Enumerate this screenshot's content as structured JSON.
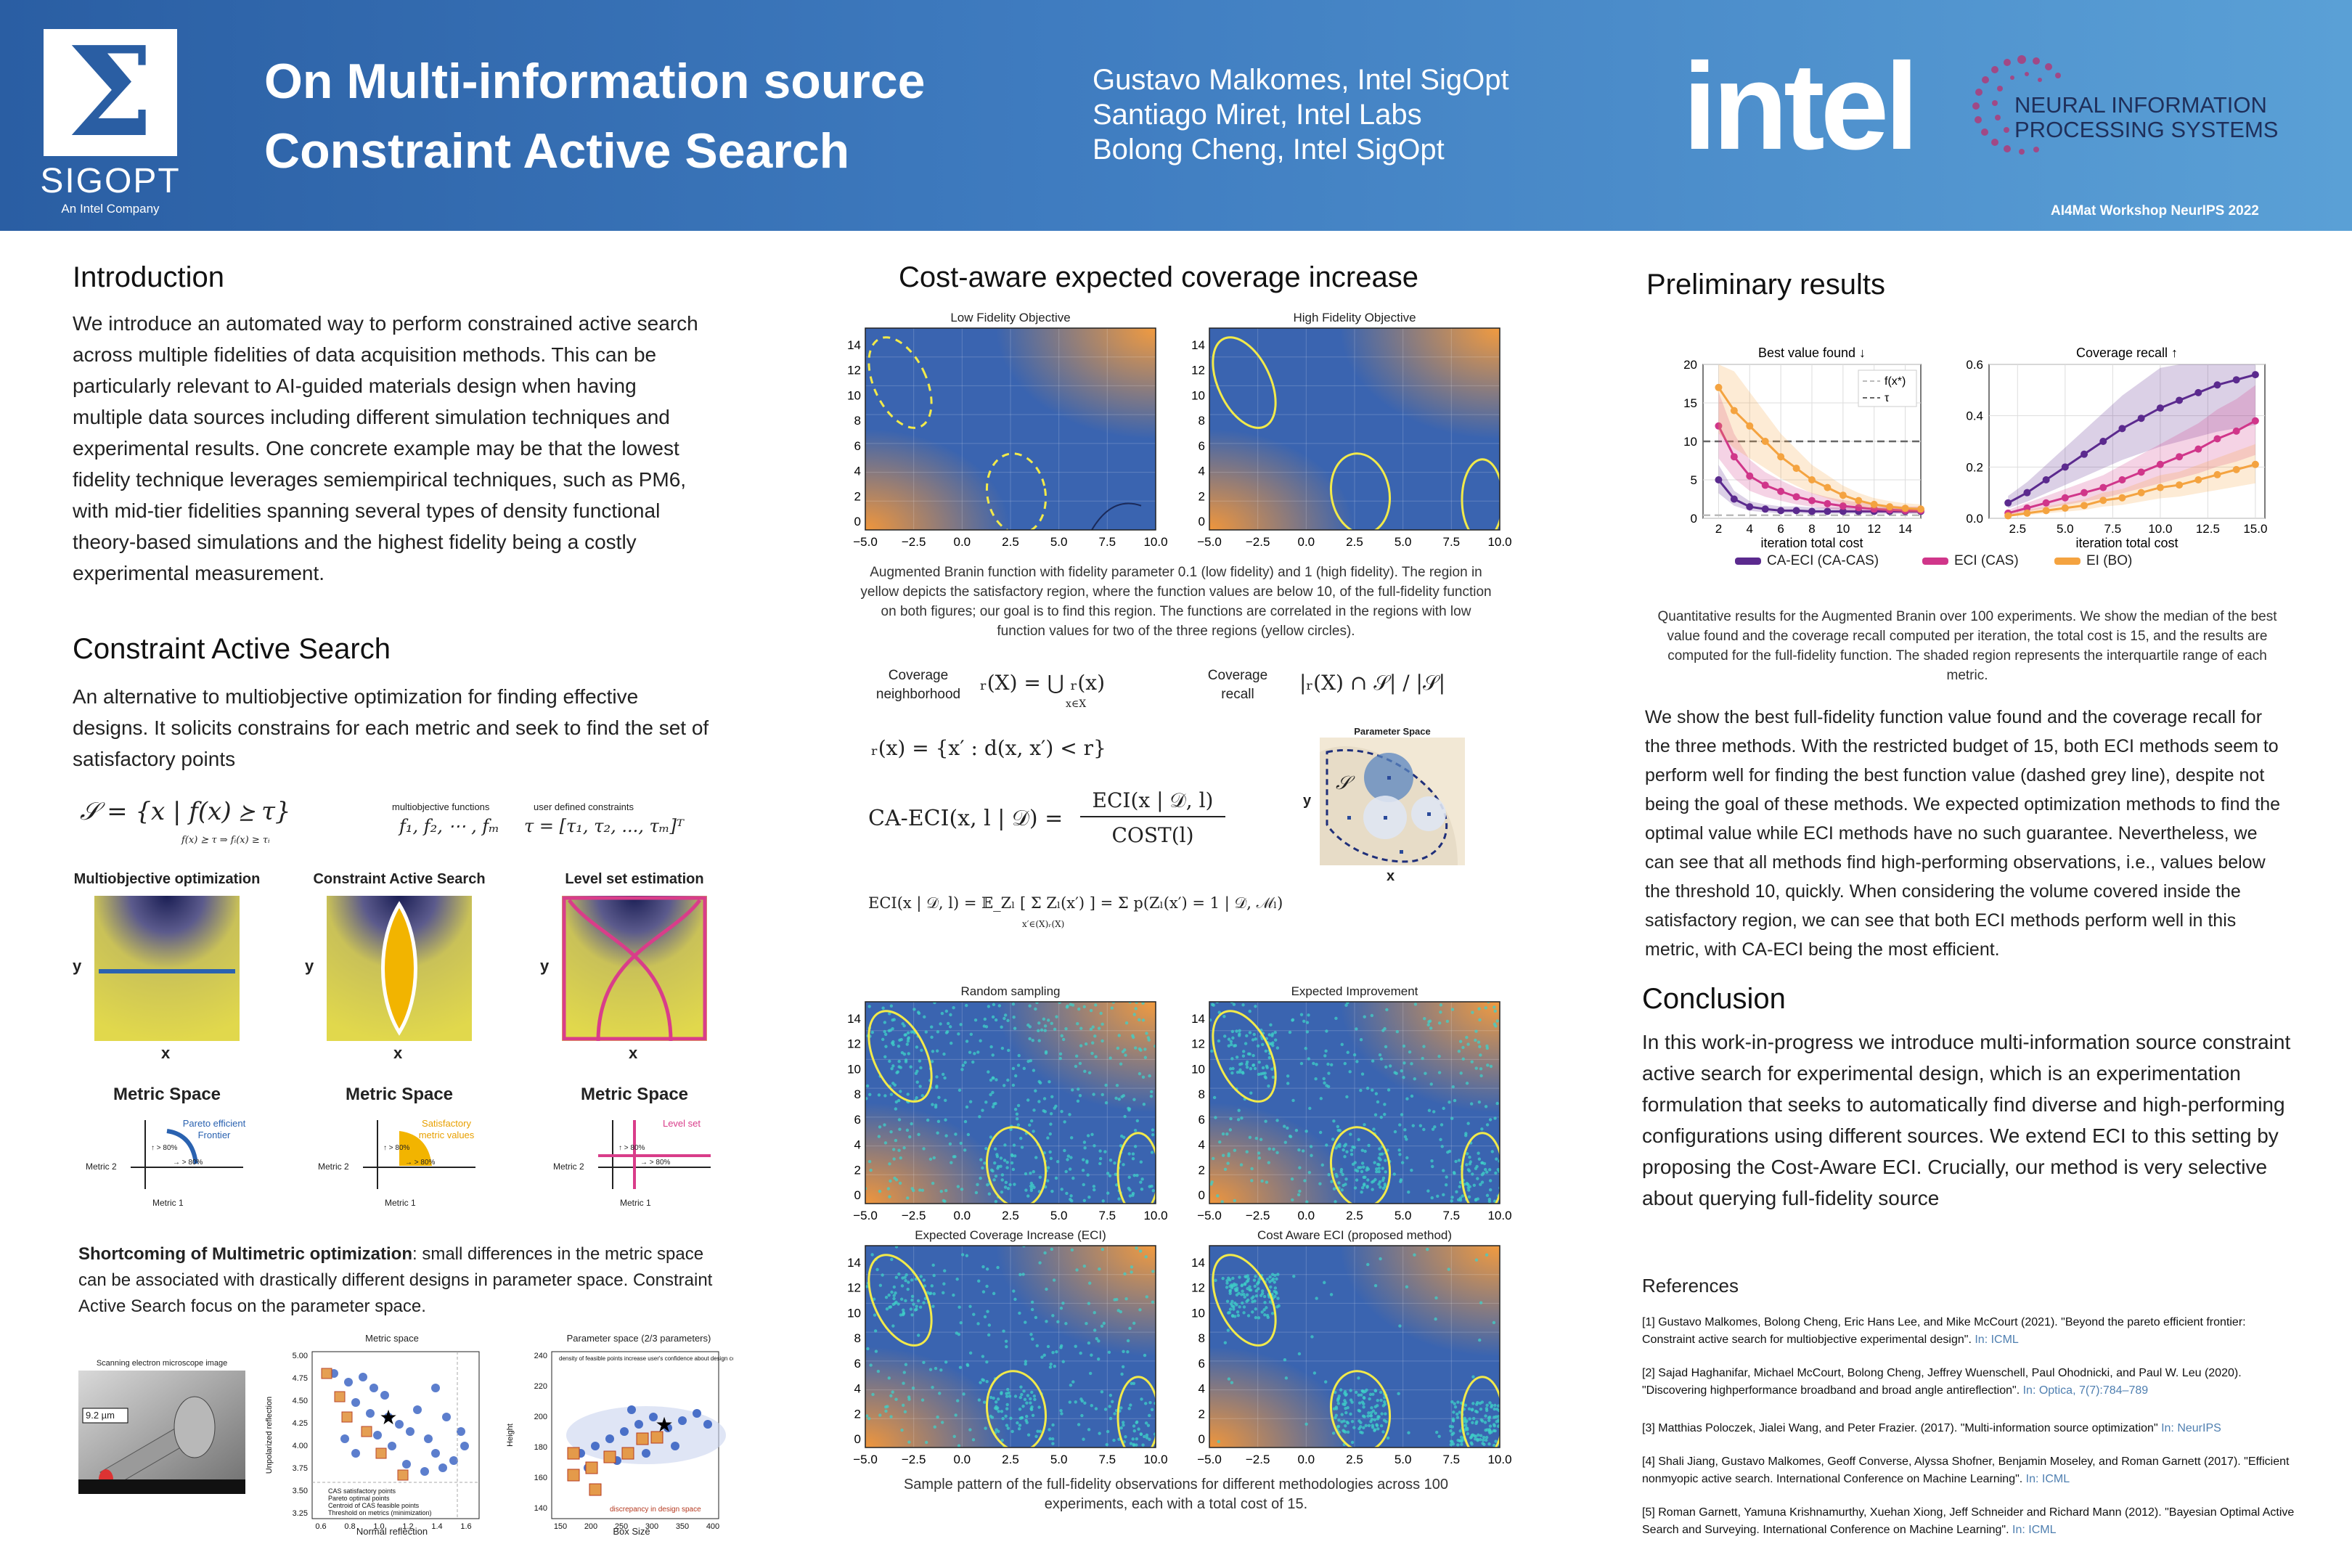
{
  "header": {
    "logo_text": "SIGOPT",
    "logo_sub": "An Intel Company",
    "title_line1": "On Multi-information source",
    "title_line2": "Constraint Active Search",
    "authors": [
      "Gustavo Malkomes, Intel SigOpt",
      "Santiago Miret, Intel Labs",
      "Bolong Cheng, Intel SigOpt"
    ],
    "intel": "intel",
    "neurips_line1": "NEURAL INFORMATION",
    "neurips_line2": "PROCESSING SYSTEMS",
    "workshop": "AI4Mat Workshop NeurIPS 2022"
  },
  "intro": {
    "title": "Introduction",
    "text": "We introduce an automated way to perform constrained active search across multiple fidelities of data acquisition methods. This can be particularly relevant to AI-guided materials design when having multiple data sources including different simulation techniques and experimental results. One concrete example may be that the lowest fidelity technique leverages semiempirical techniques, such as PM6, with mid-tier fidelities spanning several types of density functional theory-based simulations and the highest fidelity being a costly experimental measurement."
  },
  "cas": {
    "title": "Constraint Active Search",
    "text": "An alternative to multiobjective optimization for finding effective designs. It solicits constrains for each metric and seek to find the set of satisfactory points",
    "eq_main": "𝒮 = {x | f(x) ⪰ τ}",
    "eq_sub": "f(x) ⪰ τ ⇒ fᵢ(x) ≥ τᵢ",
    "mo_label": "multiobjective functions",
    "mo_eq": "f₁, f₂, ⋯ , fₘ",
    "uc_label": "user defined constraints",
    "uc_eq": "τ = [τ₁, τ₂, ..., τₘ]ᵀ",
    "panels": [
      {
        "title": "Multiobjective optimization",
        "metric": "Metric Space",
        "note": "Pareto efficient Frontier"
      },
      {
        "title": "Constraint Active Search",
        "metric": "Metric Space",
        "note": "Satisfactory metric values"
      },
      {
        "title": "Level set estimation",
        "metric": "Metric Space",
        "note": "Level set"
      }
    ],
    "axis_x": "x",
    "axis_y": "y",
    "metric1": "Metric 1",
    "metric2": "Metric 2",
    "pct1": "↑ > 80%",
    "pct2": "→ > 80%",
    "shortcoming_bold": "Shortcoming of Multimetric optimization",
    "shortcoming_text": ": small differences in the metric space can be associated with drastically different designs in parameter space. Constraint Active Search focus on the parameter space.",
    "sem_label": "Scanning electron microscope image",
    "sem_scale": "9.2 µm",
    "ms_title": "Metric space",
    "ms_xlabel": "Normal reflection",
    "ms_ylabel": "Unpolarized reflection",
    "ms_legend": [
      "CAS satisfactory points",
      "Pareto optimal points",
      "Centroid of CAS feasible points",
      "Threshold on metrics (minimization)"
    ],
    "ps_title": "Parameter space (2/3 parameters)",
    "ps_note": "density of feasible points increase user's confidence about design configurations",
    "ps_xlabel": "Box Size",
    "ps_ylabel": "Height",
    "ps_note2": "discrepancy in design space",
    "ms_xticks": [
      "0.6",
      "0.8",
      "1.0",
      "1.2",
      "1.4",
      "1.6"
    ],
    "ms_yticks": [
      "5.00",
      "4.75",
      "4.50",
      "4.25",
      "4.00",
      "3.75",
      "3.50",
      "3.25"
    ],
    "ps_xticks": [
      "150",
      "200",
      "250",
      "300",
      "350",
      "400"
    ],
    "ps_yticks": [
      "240",
      "220",
      "200",
      "180",
      "160",
      "140"
    ]
  },
  "cost": {
    "title": "Cost-aware expected coverage increase",
    "low_title": "Low Fidelity Objective",
    "high_title": "High Fidelity Objective",
    "xticks": [
      "−5.0",
      "−2.5",
      "0.0",
      "2.5",
      "5.0",
      "7.5",
      "10.0"
    ],
    "yticks": [
      "14",
      "12",
      "10",
      "8",
      "6",
      "4",
      "2",
      "0"
    ],
    "caption": "Augmented Branin function with fidelity parameter 0.1 (low fidelity) and 1 (high fidelity). The region in yellow depicts the satisfactory region, where the function values are below 10, of the full-fidelity function on both figures; our goal is to find this region. The functions are correlated in the regions with low function values for two of the three regions (yellow circles).",
    "cov_nb_label": "Coverage neighborhood",
    "cov_nb_eq": "𝕅ᵣ(X) = ⋃ 𝕅ᵣ(x)",
    "cov_nb_sub": "x∈X",
    "cov_rec_label": "Coverage recall",
    "cov_rec_eq": "|𝕅ᵣ(X) ∩ 𝒮| / |𝒮|",
    "nx_eq": "𝕅ᵣ(x) = {x′ : d(x, x′) < r}",
    "caeci_lhs": "CA-ECI(x, l | 𝒟) =",
    "caeci_num": "ECI(x | 𝒟, l)",
    "caeci_den": "COST(l)",
    "eci_eq": "ECI(x | 𝒟, l) = 𝔼_Zₗ [ Σ Zₗ(x′) ] = Σ p(Zₗ(x′) = 1 | 𝒟, ℳₗ)",
    "eci_sub": "x′∈𝕅(X)∖𝕅ᵣ(X)",
    "ps_title": "Parameter Space",
    "ps_x": "x",
    "ps_y": "y",
    "ps_s": "𝒮",
    "sample_titles": [
      "Random sampling",
      "Expected Improvement",
      "Expected Coverage Increase (ECI)",
      "Cost Aware ECI (proposed method)"
    ],
    "sample_caption": "Sample pattern of the full-fidelity observations for different methodologies across 100 experiments, each with a total cost of 15."
  },
  "results": {
    "title": "Preliminary results",
    "chart_data": [
      {
        "type": "line",
        "title": "Best value found ↓",
        "xlabel": "iteration total cost",
        "ylabel": "",
        "xlim": [
          1,
          15
        ],
        "ylim": [
          0,
          20
        ],
        "xticks": [
          2,
          4,
          6,
          8,
          10,
          12,
          14
        ],
        "yticks": [
          0,
          5,
          10,
          15,
          20
        ],
        "x": [
          2,
          3,
          4,
          5,
          6,
          7,
          8,
          9,
          10,
          11,
          12,
          13,
          14,
          15
        ],
        "series": [
          {
            "name": "CA-ECI (CA-CAS)",
            "color": "#5b2a8e",
            "values": [
              5,
              2.5,
              1.5,
              1.2,
              1.0,
              1.0,
              0.9,
              0.9,
              0.9,
              0.9,
              0.9,
              0.9,
              0.9,
              0.9
            ]
          },
          {
            "name": "ECI (CAS)",
            "color": "#d0368a",
            "values": [
              12,
              8,
              5.5,
              4.3,
              3.5,
              2.8,
              2.3,
              1.9,
              1.6,
              1.4,
              1.2,
              1.1,
              1.0,
              1.0
            ]
          },
          {
            "name": "EI (BO)",
            "color": "#f4a340",
            "values": [
              17,
              14,
              12,
              10,
              8,
              6.5,
              5,
              4,
              3,
              2.3,
              1.8,
              1.5,
              1.3,
              1.2
            ]
          }
        ],
        "reference_lines": [
          {
            "name": "f(x*)",
            "value": 0.4,
            "style": "dashed",
            "color": "#bbbbbb"
          },
          {
            "name": "τ",
            "value": 10,
            "style": "dashed",
            "color": "#666666"
          }
        ],
        "legend": "top-right",
        "grid": true
      },
      {
        "type": "line",
        "title": "Coverage recall ↑",
        "xlabel": "iteration total cost",
        "ylabel": "",
        "xlim": [
          1,
          15.5
        ],
        "ylim": [
          0,
          0.6
        ],
        "xticks": [
          2.5,
          5.0,
          7.5,
          10.0,
          12.5,
          15.0
        ],
        "yticks": [
          0.0,
          0.2,
          0.4,
          0.6
        ],
        "x": [
          2,
          3,
          4,
          5,
          6,
          7,
          8,
          9,
          10,
          11,
          12,
          13,
          14,
          15
        ],
        "series": [
          {
            "name": "CA-ECI (CA-CAS)",
            "color": "#5b2a8e",
            "values": [
              0.06,
              0.1,
              0.15,
              0.2,
              0.25,
              0.3,
              0.35,
              0.39,
              0.43,
              0.46,
              0.49,
              0.52,
              0.54,
              0.56
            ]
          },
          {
            "name": "ECI (CAS)",
            "color": "#d0368a",
            "values": [
              0.02,
              0.04,
              0.06,
              0.08,
              0.1,
              0.12,
              0.15,
              0.18,
              0.21,
              0.24,
              0.27,
              0.31,
              0.34,
              0.38
            ]
          },
          {
            "name": "EI (BO)",
            "color": "#f4a340",
            "values": [
              0.01,
              0.02,
              0.03,
              0.04,
              0.05,
              0.07,
              0.08,
              0.1,
              0.12,
              0.13,
              0.15,
              0.17,
              0.19,
              0.21
            ]
          }
        ],
        "grid": true
      }
    ],
    "bv_xticks": [
      "2",
      "4",
      "6",
      "8",
      "10",
      "12",
      "14"
    ],
    "bv_yticks": [
      "20",
      "15",
      "10",
      "5",
      "0"
    ],
    "cr_xticks": [
      "2.5",
      "5.0",
      "7.5",
      "10.0",
      "12.5",
      "15.0"
    ],
    "cr_yticks": [
      "0.6",
      "0.4",
      "0.2",
      "0.0"
    ],
    "legend_items": [
      "CA-ECI (CA-CAS)",
      "ECI (CAS)",
      "EI (BO)"
    ],
    "ref_legend": [
      "f(x*)",
      "τ"
    ],
    "caption": "Quantitative results for the Augmented Branin over 100 experiments. We show the median of the best value found and the coverage recall computed per iteration, the total cost is 15, and the results are computed for the full-fidelity function. The shaded region represents the interquartile range of each metric.",
    "text": "We show the best full-fidelity function value found and the coverage recall for the three methods. With the restricted budget of 15, both ECI methods seem to perform well for finding the best function value (dashed grey line), despite not being the goal of these methods. We expected optimization methods to find the optimal value while ECI methods have no such guarantee. Nevertheless, we can see that all methods find high-performing observations, i.e., values below the threshold 10, quickly. When considering the volume covered inside the satisfactory region, we can see that both ECI methods perform well in this metric, with CA-ECI being the most efficient."
  },
  "conclusion": {
    "title": "Conclusion",
    "text": "In this work-in-progress we introduce multi-information source constraint active search for experimental design, which is an experimentation formulation that seeks to automatically find diverse and high-performing configurations using different sources. We extend ECI to this setting by proposing the Cost-Aware ECI. Crucially, our method is very selective about querying full-fidelity source"
  },
  "references": {
    "title": "References",
    "items": [
      {
        "text": "[1] Gustavo Malkomes, Bolong Cheng, Eric Hans Lee, and Mike McCourt (2021). \"Beyond the pareto efficient frontier: Constraint active search for multiobjective experimental design\".",
        "in": "In: ICML"
      },
      {
        "text": "[2] Sajad Haghanifar, Michael McCourt, Bolong Cheng, Jeffrey Wuenschell, Paul Ohodnicki, and Paul W. Leu (2020). \"Discovering highperformance broadband and broad angle antireflection\".",
        "in": "In: Optica, 7(7):784–789"
      },
      {
        "text": "[3] Matthias Poloczek, Jialei Wang, and Peter Frazier. (2017). \"Multi-information source optimization\"",
        "in": "In: NeurIPS"
      },
      {
        "text": "[4] Shali Jiang, Gustavo Malkomes, Geoff Converse, Alyssa Shofner, Benjamin Moseley, and Roman Garnett (2017). \"Efficient nonmyopic active search. International Conference on Machine Learning\".",
        "in": "In: ICML"
      },
      {
        "text": "[5] Roman Garnett, Yamuna Krishnamurthy, Xuehan Xiong, Jeff Schneider and Richard Mann (2012). \"Bayesian Optimal Active Search and Surveying. International Conference on Machine Learning\".",
        "in": "In: ICML"
      }
    ]
  }
}
